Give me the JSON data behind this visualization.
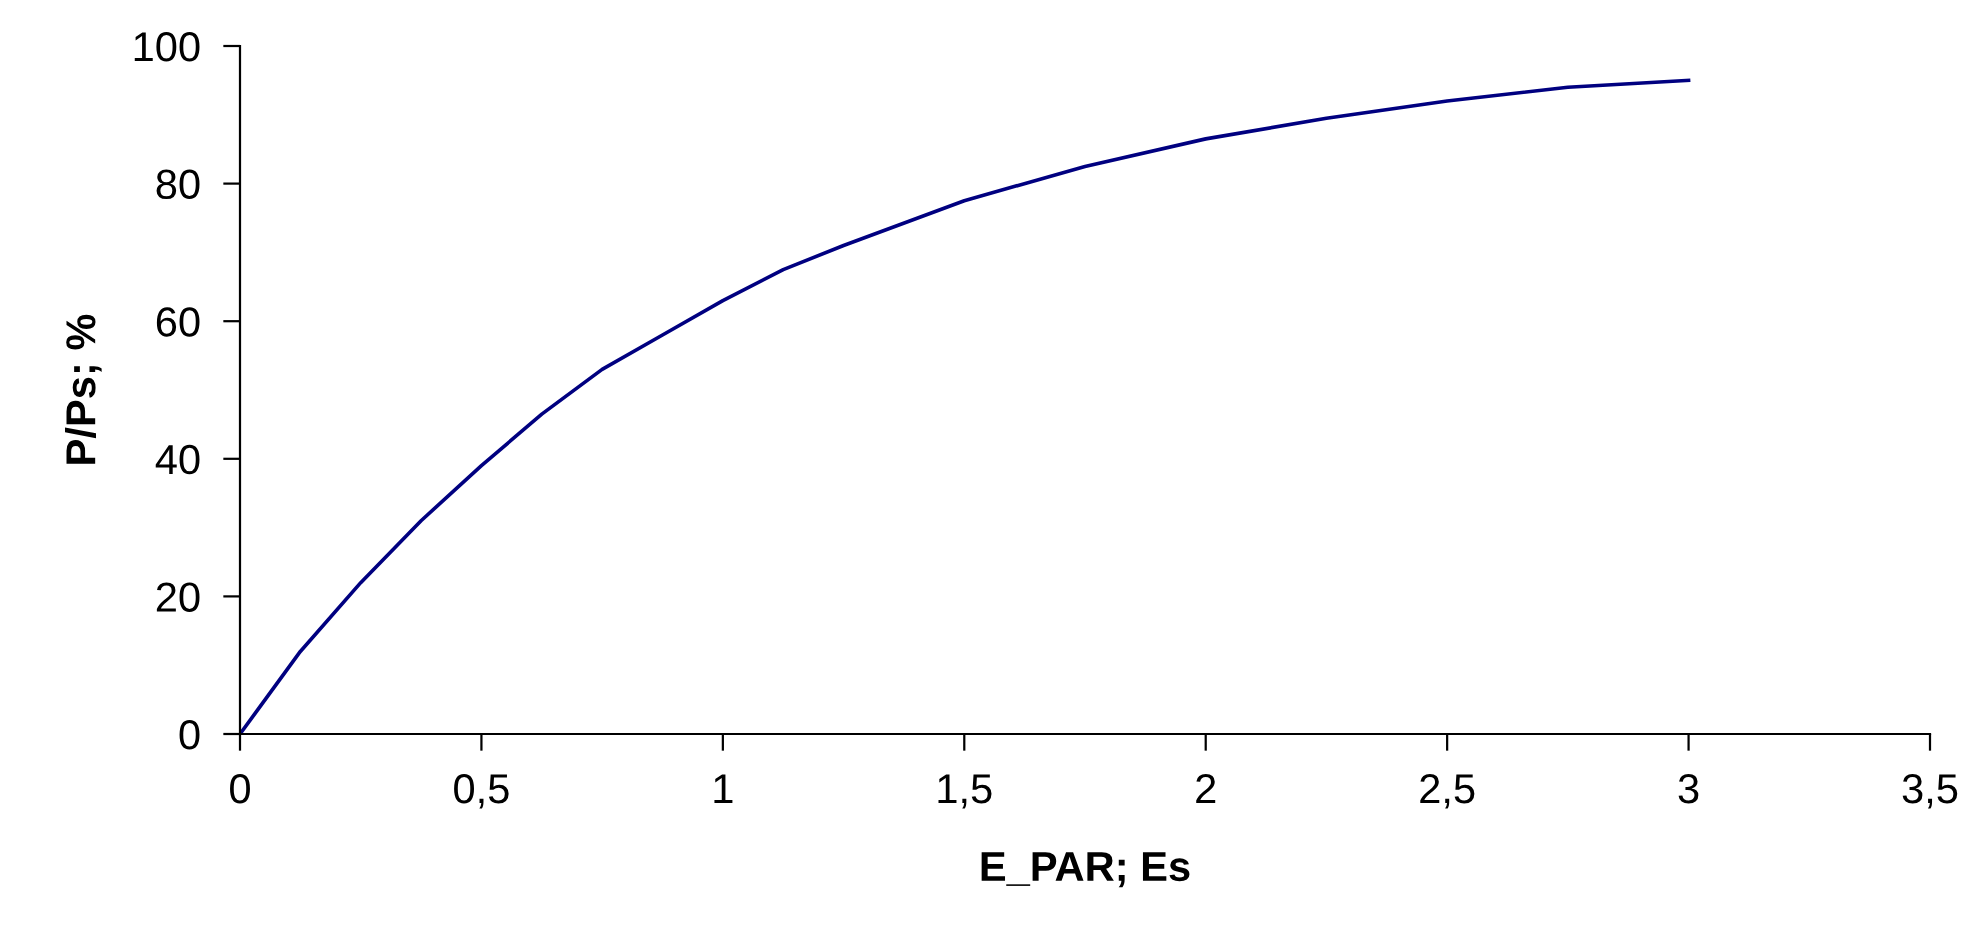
{
  "chart_data": {
    "type": "line",
    "xlabel": "E_PAR; Es",
    "ylabel": "P/Ps; %",
    "x": [
      0,
      0.125,
      0.25,
      0.375,
      0.5,
      0.625,
      0.75,
      0.875,
      1,
      1.125,
      1.25,
      1.5,
      1.75,
      2,
      2.25,
      2.5,
      2.75,
      3
    ],
    "series": [
      {
        "color": "#000080",
        "values": [
          0,
          12,
          22,
          31,
          39,
          46.5,
          53,
          58,
          63,
          67.5,
          71,
          77.5,
          82.5,
          86.5,
          89.5,
          92,
          94,
          95
        ]
      }
    ],
    "xlim": [
      0,
      3.5
    ],
    "ylim": [
      0,
      100
    ],
    "xticks": [
      0,
      {
        "value": 0.5,
        "label": "0,5"
      },
      1,
      {
        "value": 1.5,
        "label": "1,5"
      },
      2,
      {
        "value": 2.5,
        "label": "2,5"
      },
      3,
      {
        "value": 3.5,
        "label": "3,5"
      }
    ],
    "yticks": [
      0,
      20,
      40,
      60,
      80,
      100
    ],
    "grid": false,
    "legend": false,
    "marker": "none",
    "line_style": "solid"
  }
}
